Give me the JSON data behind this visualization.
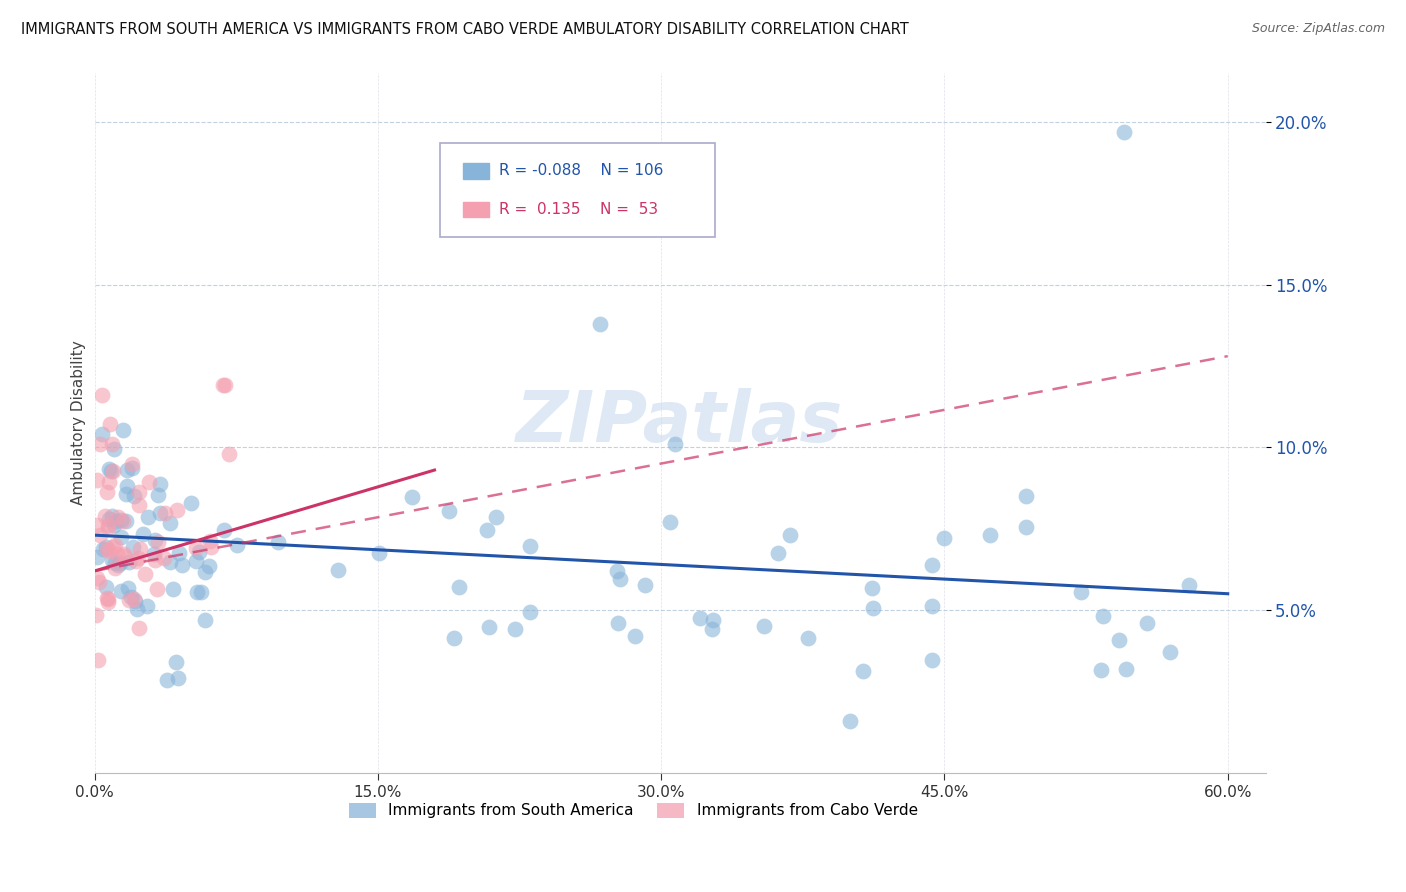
{
  "title": "IMMIGRANTS FROM SOUTH AMERICA VS IMMIGRANTS FROM CABO VERDE AMBULATORY DISABILITY CORRELATION CHART",
  "source": "Source: ZipAtlas.com",
  "ylabel": "Ambulatory Disability",
  "xlim": [
    0.0,
    0.62
  ],
  "ylim": [
    0.0,
    0.215
  ],
  "yticks": [
    0.05,
    0.1,
    0.15,
    0.2
  ],
  "xticks": [
    0.0,
    0.15,
    0.3,
    0.45,
    0.6
  ],
  "blue_color": "#89B4D9",
  "pink_color": "#F4A0B0",
  "blue_line_color": "#2255AA",
  "pink_line_color": "#CC3366",
  "watermark_color": "#C5D8EE",
  "legend_box_color": "#DDDDEE",
  "blue_r": "-0.088",
  "blue_n": "106",
  "pink_r": "0.135",
  "pink_n": "53",
  "blue_text_color": "#2255AA",
  "pink_text_color": "#CC3366"
}
